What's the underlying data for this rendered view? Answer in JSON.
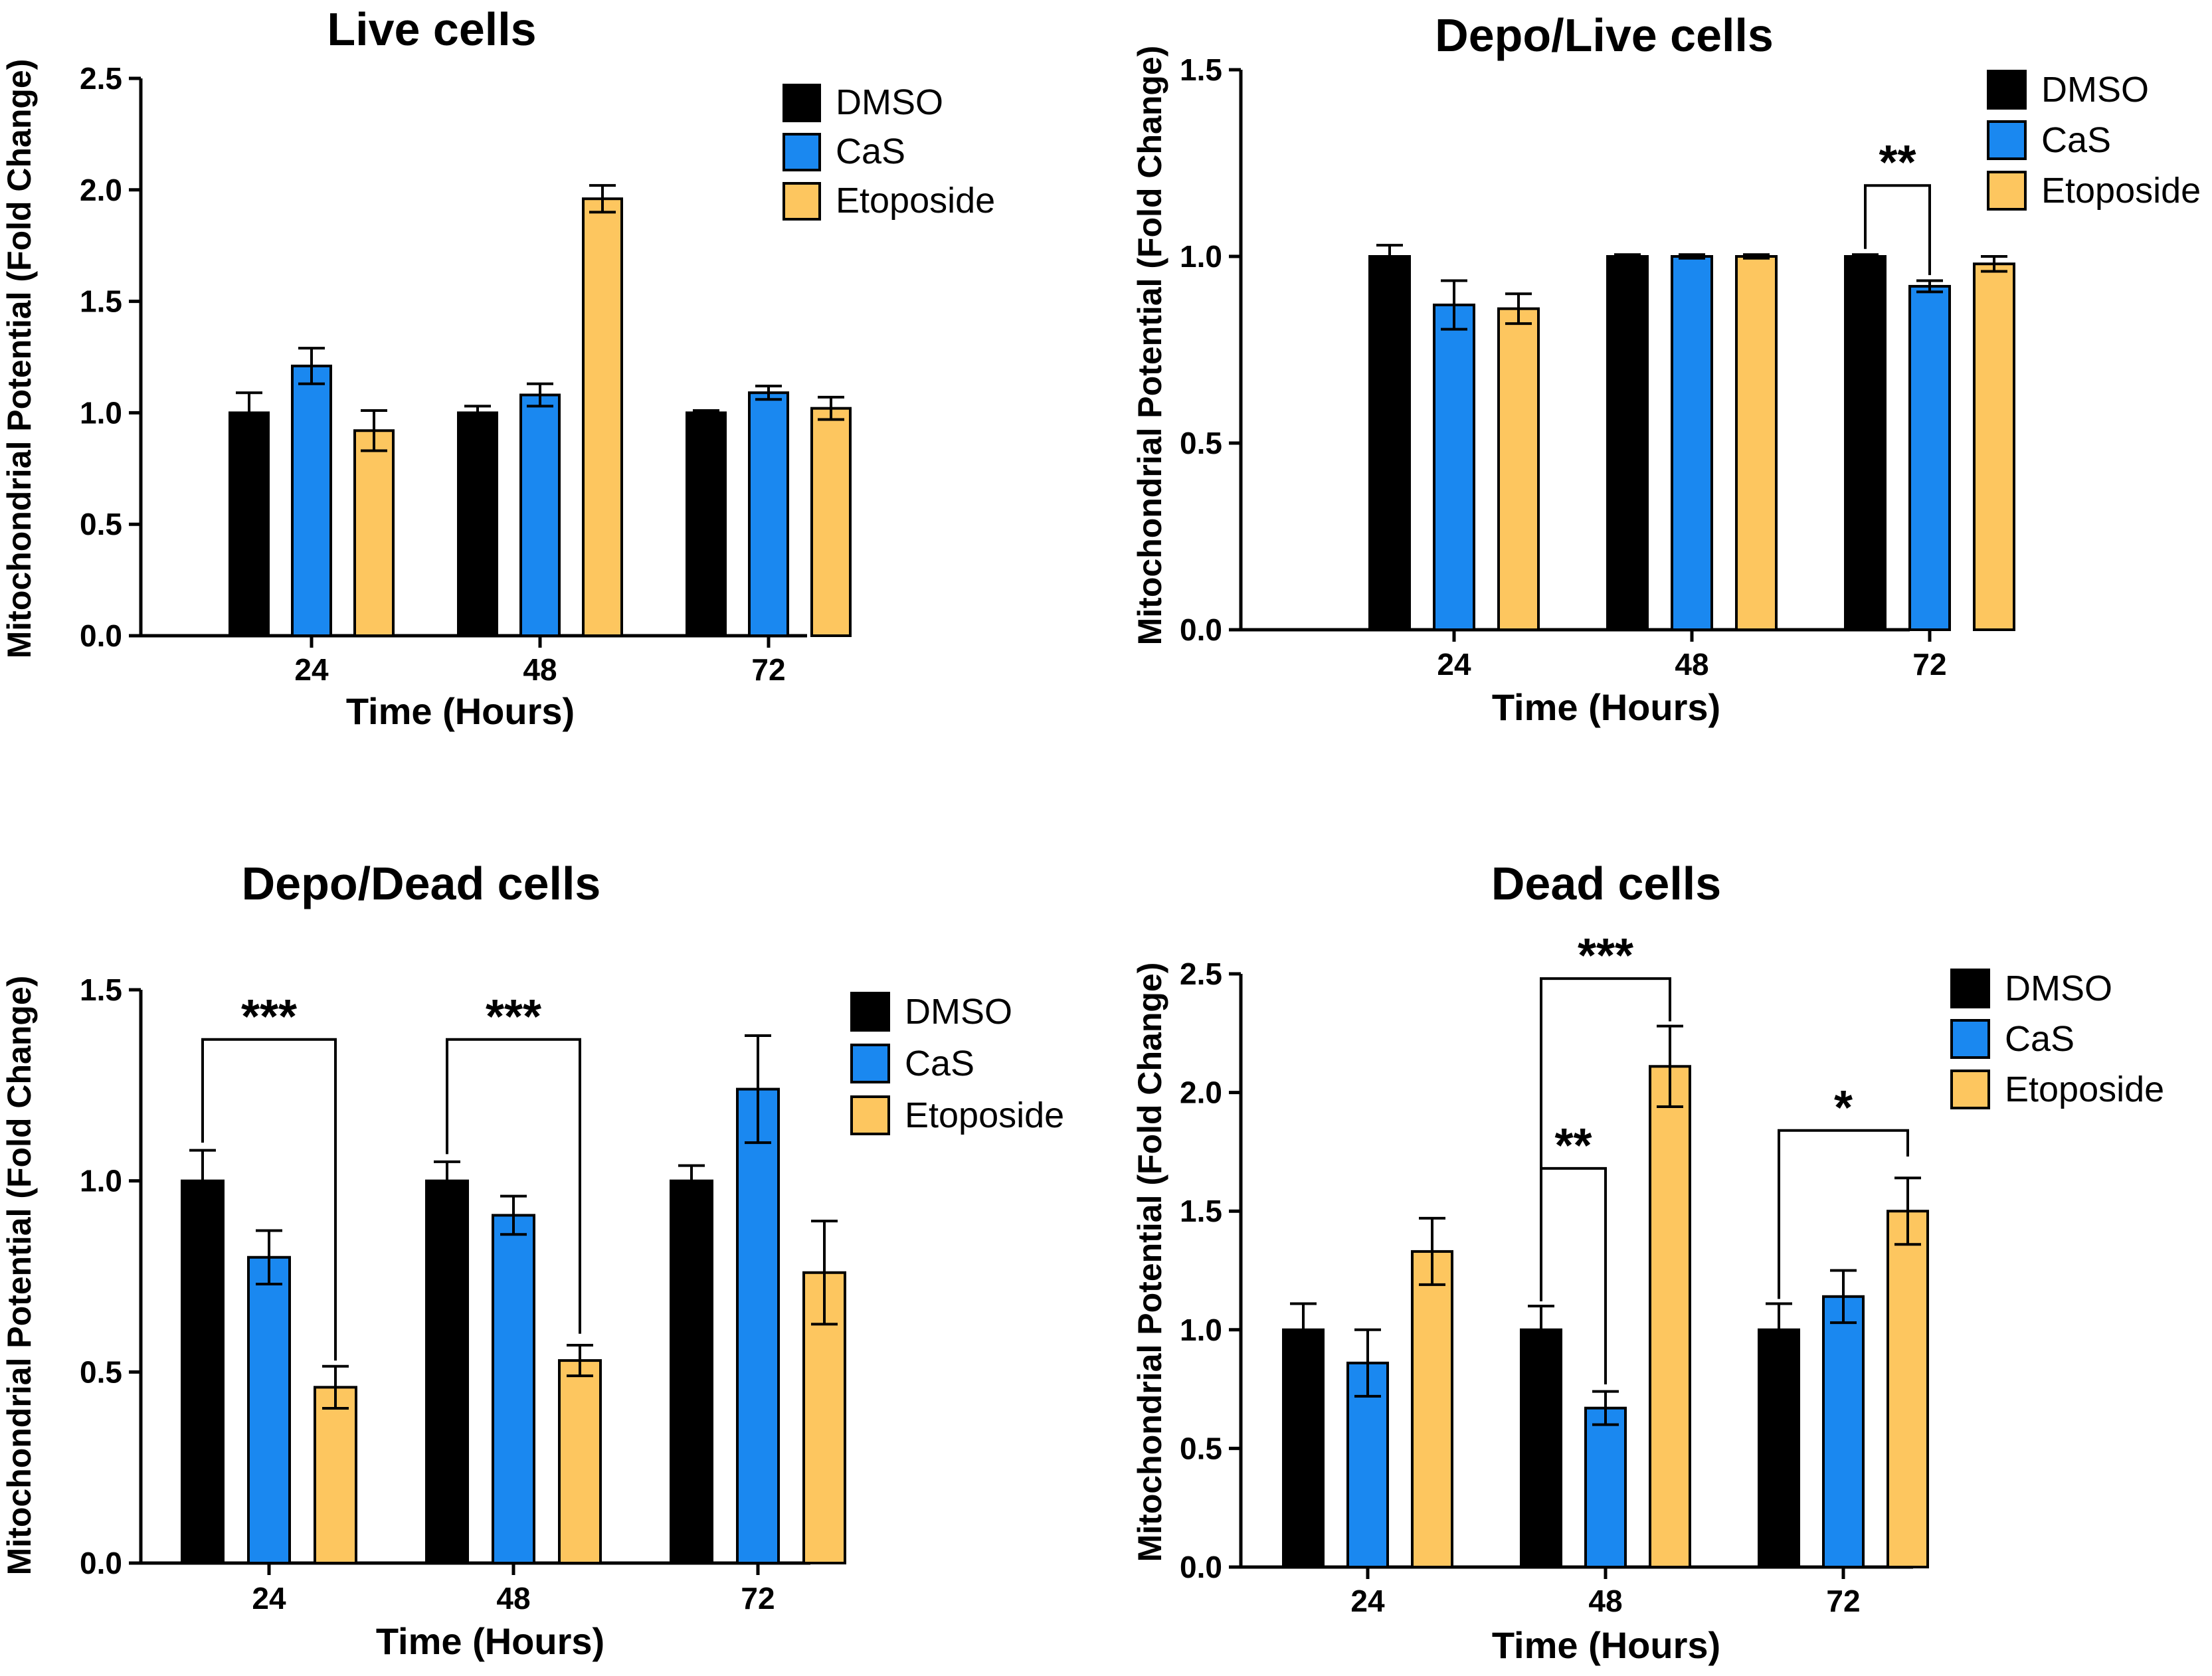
{
  "colors": {
    "DMSO": "#000000",
    "CaS": "#1a88f0",
    "Etoposide": "#fdc65f"
  },
  "chart_data": [
    {
      "type": "bar",
      "title": "Live cells",
      "xlabel": "Time (Hours)",
      "ylabel": "Mitochondrial Potential (Fold Change)",
      "categories": [
        "24",
        "48",
        "72"
      ],
      "ylim": [
        0,
        2.5
      ],
      "yticks": [
        "0.0",
        "0.5",
        "1.0",
        "1.5",
        "2.0",
        "2.5"
      ],
      "legend": [
        "DMSO",
        "CaS",
        "Etoposide"
      ],
      "series": [
        {
          "name": "DMSO",
          "values": [
            1.0,
            1.0,
            1.0
          ],
          "errors": [
            0.09,
            0.03,
            0.01
          ]
        },
        {
          "name": "CaS",
          "values": [
            1.21,
            1.08,
            1.09
          ],
          "errors": [
            0.08,
            0.05,
            0.03
          ]
        },
        {
          "name": "Etoposide",
          "values": [
            0.92,
            1.96,
            1.02
          ],
          "errors": [
            0.09,
            0.06,
            0.05
          ]
        }
      ],
      "annotations": []
    },
    {
      "type": "bar",
      "title": "Depo/Live cells",
      "xlabel": "Time (Hours)",
      "ylabel": "Mitochondrial Potential (Fold Change)",
      "categories": [
        "24",
        "48",
        "72"
      ],
      "ylim": [
        0,
        1.5
      ],
      "yticks": [
        "0.0",
        "0.5",
        "1.0",
        "1.5"
      ],
      "legend": [
        "DMSO",
        "CaS",
        "Etoposide"
      ],
      "series": [
        {
          "name": "DMSO",
          "values": [
            1.0,
            1.0,
            1.0
          ],
          "errors": [
            0.03,
            0.005,
            0.005
          ]
        },
        {
          "name": "CaS",
          "values": [
            0.87,
            1.0,
            0.92
          ],
          "errors": [
            0.065,
            0.005,
            0.015
          ]
        },
        {
          "name": "Etoposide",
          "values": [
            0.86,
            1.0,
            0.98
          ],
          "errors": [
            0.04,
            0.005,
            0.02
          ]
        }
      ],
      "annotations": [
        {
          "label": "**",
          "group": 2,
          "from": 0,
          "to": 1,
          "y": 1.19,
          "drop_left": 1.02,
          "drop_right": 0.95
        }
      ]
    },
    {
      "type": "bar",
      "title": "Depo/Dead cells",
      "xlabel": "Time (Hours)",
      "ylabel": "Mitochondrial Potential (Fold Change)",
      "categories": [
        "24",
        "48",
        "72"
      ],
      "ylim": [
        0,
        1.5
      ],
      "yticks": [
        "0.0",
        "0.5",
        "1.0",
        "1.5"
      ],
      "legend": [
        "DMSO",
        "CaS",
        "Etoposide"
      ],
      "series": [
        {
          "name": "DMSO",
          "values": [
            1.0,
            1.0,
            1.0
          ],
          "errors": [
            0.08,
            0.05,
            0.04
          ]
        },
        {
          "name": "CaS",
          "values": [
            0.8,
            0.91,
            1.24
          ],
          "errors": [
            0.07,
            0.05,
            0.14
          ]
        },
        {
          "name": "Etoposide",
          "values": [
            0.46,
            0.53,
            0.76
          ],
          "errors": [
            0.055,
            0.04,
            0.135
          ]
        }
      ],
      "annotations": [
        {
          "label": "***",
          "group": 0,
          "from": 0,
          "to": 2,
          "y": 1.37,
          "drop_left": 1.1,
          "drop_right": 0.53
        },
        {
          "label": "***",
          "group": 1,
          "from": 0,
          "to": 2,
          "y": 1.37,
          "drop_left": 1.07,
          "drop_right": 0.6
        }
      ]
    },
    {
      "type": "bar",
      "title": "Dead cells",
      "xlabel": "Time (Hours)",
      "ylabel": "Mitochondrial Potential (Fold Change)",
      "categories": [
        "24",
        "48",
        "72"
      ],
      "ylim": [
        0,
        2.5
      ],
      "yticks": [
        "0.0",
        "0.5",
        "1.0",
        "1.5",
        "2.0",
        "2.5"
      ],
      "legend": [
        "DMSO",
        "CaS",
        "Etoposide"
      ],
      "series": [
        {
          "name": "DMSO",
          "values": [
            1.0,
            1.0,
            1.0
          ],
          "errors": [
            0.11,
            0.1,
            0.11
          ]
        },
        {
          "name": "CaS",
          "values": [
            0.86,
            0.67,
            1.14
          ],
          "errors": [
            0.14,
            0.07,
            0.11
          ]
        },
        {
          "name": "Etoposide",
          "values": [
            1.33,
            2.11,
            1.5
          ],
          "errors": [
            0.14,
            0.17,
            0.14
          ]
        }
      ],
      "annotations": [
        {
          "label": "***",
          "group": 1,
          "from": 0,
          "to": 2,
          "y": 2.48,
          "drop_left": 1.12,
          "drop_right": 2.3
        },
        {
          "label": "**",
          "group": 1,
          "from": 0,
          "to": 1,
          "y": 1.68,
          "drop_left": 1.12,
          "drop_right": 0.77
        },
        {
          "label": "*",
          "group": 2,
          "from": 0,
          "to": 2,
          "y": 1.84,
          "drop_left": 1.13,
          "drop_right": 1.73
        }
      ]
    }
  ]
}
